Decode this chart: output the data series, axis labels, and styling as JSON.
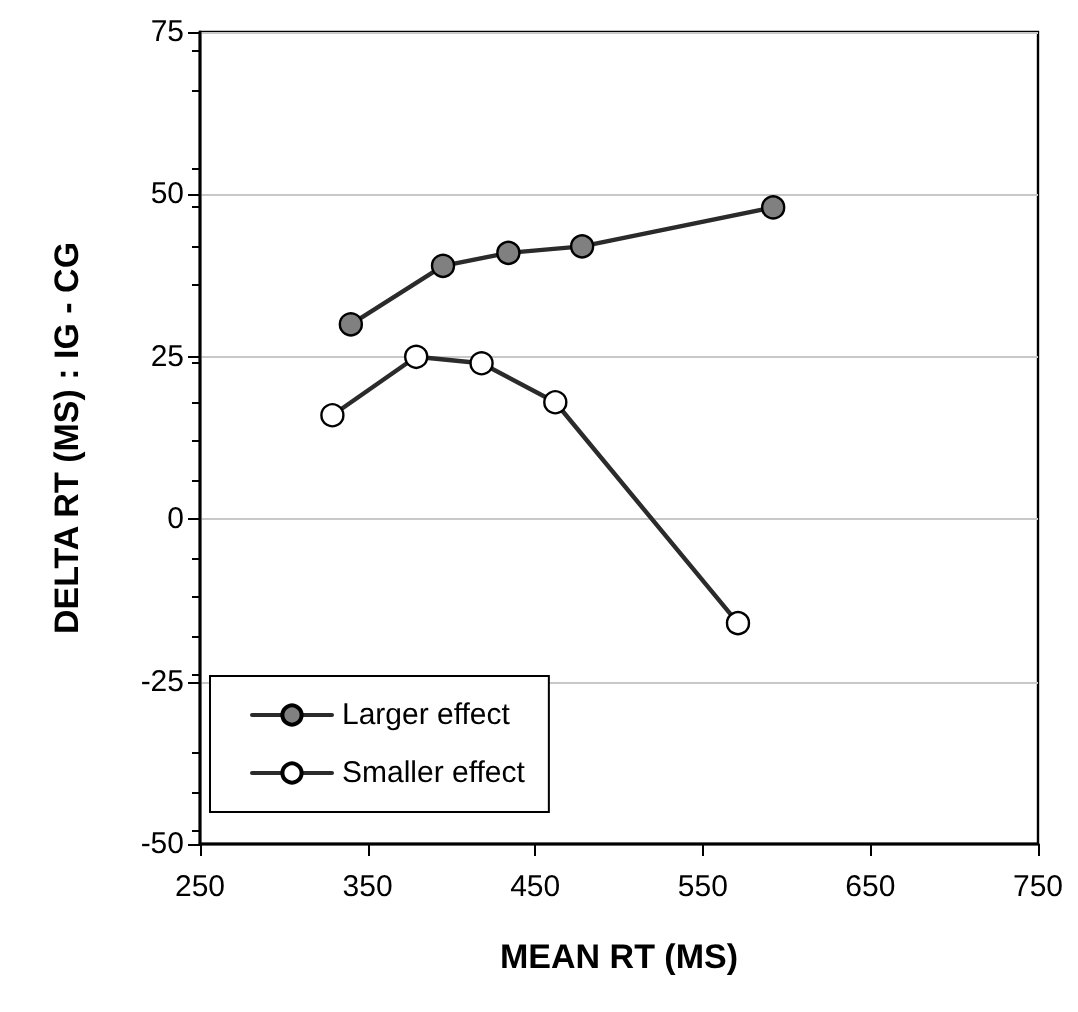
{
  "chart_data": {
    "type": "line",
    "xlabel": "MEAN RT (MS)",
    "ylabel": "DELTA RT (MS) : IG - CG",
    "xlim": [
      250,
      750
    ],
    "xticks": [
      250,
      350,
      450,
      550,
      650,
      750
    ],
    "ylim": [
      -50,
      75
    ],
    "yticks": [
      -50,
      -25,
      0,
      25,
      50,
      75
    ],
    "grid": "y",
    "legend": "bottom left",
    "marker": "circle",
    "line_style": "solid",
    "series": [
      {
        "name": "Larger effect",
        "color": "#808080",
        "x": [
          340,
          395,
          434,
          478,
          592
        ],
        "values": [
          30,
          39,
          41,
          42,
          48
        ]
      },
      {
        "name": "Smaller effect",
        "color": "#ffffff",
        "x": [
          329,
          379,
          418,
          462,
          571
        ],
        "values": [
          16,
          25,
          24,
          18,
          -16
        ]
      }
    ]
  }
}
